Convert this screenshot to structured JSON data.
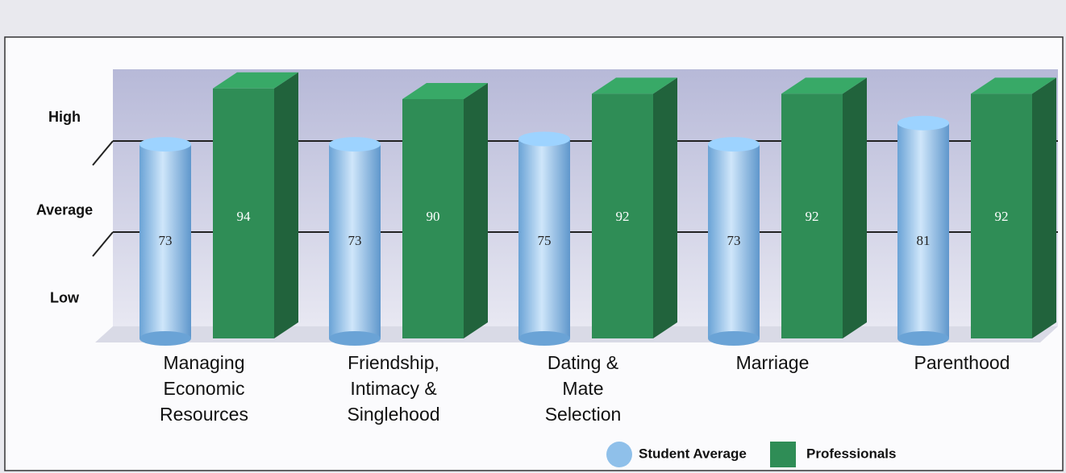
{
  "chart_data": {
    "type": "bar",
    "categories": [
      "Managing\nEconomic\nResources",
      "Friendship,\nIntimacy &\nSinglehood",
      "Dating &\nMate\nSelection",
      "Marriage",
      "Parenthood"
    ],
    "series": [
      {
        "name": "Student Average",
        "color": "#8fc0ea",
        "values": [
          73,
          73,
          75,
          73,
          81
        ]
      },
      {
        "name": "Professionals",
        "color": "#2f8d56",
        "values": [
          94,
          90,
          92,
          92,
          92
        ]
      }
    ],
    "ylim": [
      0,
      100
    ],
    "yticks": [
      {
        "value": 15,
        "label": "Low"
      },
      {
        "value": 48,
        "label": "Average"
      },
      {
        "value": 83,
        "label": "High"
      }
    ]
  }
}
